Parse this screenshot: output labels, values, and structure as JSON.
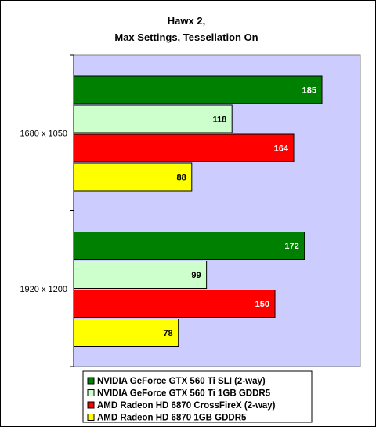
{
  "chart_data": {
    "type": "bar",
    "orientation": "horizontal",
    "title": [
      "Hawx 2,",
      "Max Settings, Tessellation On"
    ],
    "categories": [
      "1680 x 1050",
      "1920 x 1200"
    ],
    "series": [
      {
        "name": "NVIDIA GeForce GTX 560 Ti SLI (2-way)",
        "color": "#008000",
        "label_color": "#ffffff",
        "values": [
          185,
          172
        ]
      },
      {
        "name": "NVIDIA GeForce GTX 560 Ti 1GB GDDR5",
        "color": "#ccffcc",
        "label_color": "#000000",
        "values": [
          118,
          99
        ]
      },
      {
        "name": "AMD Radeon HD 6870 CrossFireX (2-way)",
        "color": "#ff0000",
        "label_color": "#ffffff",
        "values": [
          164,
          150
        ]
      },
      {
        "name": "AMD Radeon HD 6870 1GB GDDR5",
        "color": "#ffff00",
        "label_color": "#000000",
        "values": [
          88,
          78
        ]
      }
    ],
    "xlim": [
      0,
      200
    ],
    "plot_background": "#ccccff",
    "grid": false,
    "legend_position": "bottom"
  }
}
